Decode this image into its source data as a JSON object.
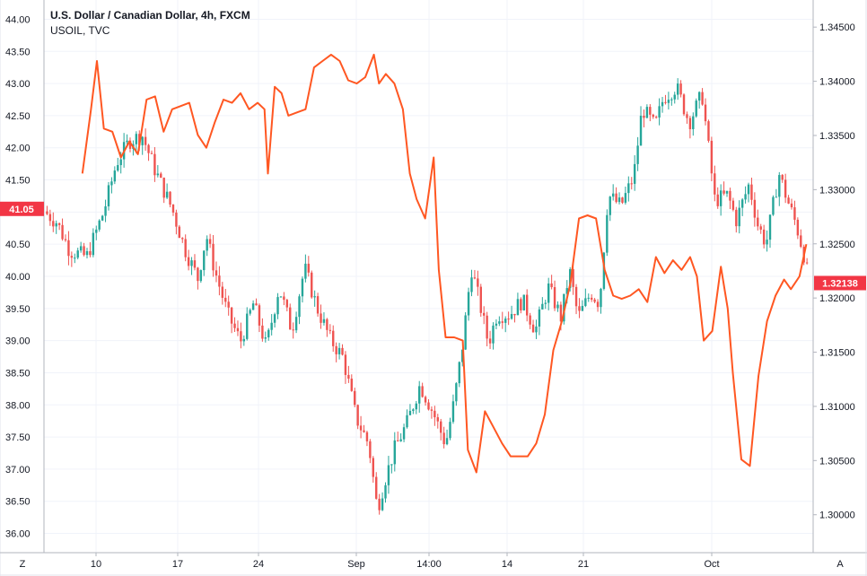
{
  "legend": {
    "main": "U.S. Dollar / Canadian Dollar, 4h, FXCM",
    "overlay": "USOIL, TVC"
  },
  "colors": {
    "up": "#26a69a",
    "down": "#ef5350",
    "overlay": "#ff5722",
    "badge": "#f23645",
    "grid": "#f0f3fa",
    "axis": "#b2b5be"
  },
  "controls": {
    "zoom_label": "Z",
    "auto_label": "A"
  },
  "price_badges": {
    "left": "41.05",
    "right": "1.32138"
  },
  "chart_data": {
    "type": "candlestick",
    "title": "U.S. Dollar / Canadian Dollar, 4h, FXCM",
    "xlabel": "",
    "ylabel": "",
    "x_tick_labels": [
      "10",
      "17",
      "24",
      "Sep",
      "14:00",
      "14",
      "21",
      "Oct"
    ],
    "left_axis": {
      "series": "USOIL, TVC",
      "ylim": [
        35.7,
        44.3
      ],
      "ticks": [
        "44.00",
        "43.50",
        "43.00",
        "42.50",
        "42.00",
        "41.50",
        "41.00",
        "40.50",
        "40.00",
        "39.50",
        "39.00",
        "38.50",
        "38.00",
        "37.50",
        "37.00",
        "36.50",
        "36.00"
      ],
      "last_value": 41.05
    },
    "right_axis": {
      "series": "U.S. Dollar / Canadian Dollar, 4h, FXCM",
      "ylim": [
        1.2965,
        1.3475
      ],
      "ticks": [
        "1.34500",
        "1.34000",
        "1.33500",
        "1.33000",
        "1.32500",
        "1.32000",
        "1.31500",
        "1.31000",
        "1.30500",
        "1.30000"
      ],
      "last_value": 1.32138
    },
    "grid": true,
    "series": [
      {
        "name": "U.S. Dollar / Canadian Dollar, 4h, FXCM",
        "kind": "candlestick-close-path",
        "axis": "right",
        "points": [
          [
            0,
            1.328
          ],
          [
            15,
            1.327
          ],
          [
            30,
            1.3244
          ],
          [
            50,
            1.3238
          ],
          [
            70,
            1.328
          ],
          [
            85,
            1.3325
          ],
          [
            100,
            1.3345
          ],
          [
            115,
            1.335
          ],
          [
            130,
            1.3318
          ],
          [
            150,
            1.3282
          ],
          [
            165,
            1.3245
          ],
          [
            180,
            1.3218
          ],
          [
            190,
            1.3258
          ],
          [
            200,
            1.3225
          ],
          [
            215,
            1.3185
          ],
          [
            230,
            1.316
          ],
          [
            245,
            1.3195
          ],
          [
            260,
            1.3155
          ],
          [
            275,
            1.321
          ],
          [
            290,
            1.317
          ],
          [
            305,
            1.3228
          ],
          [
            320,
            1.319
          ],
          [
            335,
            1.3162
          ],
          [
            350,
            1.3145
          ],
          [
            365,
            1.309
          ],
          [
            380,
            1.3065
          ],
          [
            390,
            1.3005
          ],
          [
            400,
            1.3035
          ],
          [
            410,
            1.306
          ],
          [
            425,
            1.3085
          ],
          [
            440,
            1.312
          ],
          [
            455,
            1.3095
          ],
          [
            470,
            1.3065
          ],
          [
            480,
            1.3105
          ],
          [
            490,
            1.3158
          ],
          [
            500,
            1.3228
          ],
          [
            510,
            1.3195
          ],
          [
            520,
            1.3158
          ],
          [
            530,
            1.3185
          ],
          [
            545,
            1.3185
          ],
          [
            560,
            1.3198
          ],
          [
            575,
            1.317
          ],
          [
            590,
            1.321
          ],
          [
            605,
            1.3182
          ],
          [
            615,
            1.3225
          ],
          [
            625,
            1.3182
          ],
          [
            640,
            1.3205
          ],
          [
            650,
            1.3195
          ],
          [
            660,
            1.3295
          ],
          [
            675,
            1.3285
          ],
          [
            690,
            1.3312
          ],
          [
            700,
            1.3375
          ],
          [
            715,
            1.3358
          ],
          [
            725,
            1.3385
          ],
          [
            740,
            1.3395
          ],
          [
            755,
            1.3362
          ],
          [
            770,
            1.3388
          ],
          [
            785,
            1.329
          ],
          [
            800,
            1.3295
          ],
          [
            810,
            1.3272
          ],
          [
            825,
            1.3305
          ],
          [
            835,
            1.3268
          ],
          [
            845,
            1.325
          ],
          [
            860,
            1.3315
          ],
          [
            870,
            1.329
          ],
          [
            880,
            1.3268
          ],
          [
            890,
            1.3238
          ],
          [
            895,
            1.3215
          ]
        ]
      },
      {
        "name": "USOIL, TVC",
        "kind": "line",
        "axis": "left",
        "points": [
          [
            45,
            41.6
          ],
          [
            55,
            42.6
          ],
          [
            62,
            43.35
          ],
          [
            70,
            42.3
          ],
          [
            80,
            42.25
          ],
          [
            90,
            41.85
          ],
          [
            100,
            42.1
          ],
          [
            110,
            41.9
          ],
          [
            120,
            42.75
          ],
          [
            130,
            42.8
          ],
          [
            140,
            42.25
          ],
          [
            150,
            42.6
          ],
          [
            160,
            42.65
          ],
          [
            170,
            42.7
          ],
          [
            180,
            42.2
          ],
          [
            190,
            42.0
          ],
          [
            200,
            42.4
          ],
          [
            210,
            42.75
          ],
          [
            220,
            42.7
          ],
          [
            230,
            42.85
          ],
          [
            240,
            42.6
          ],
          [
            250,
            42.7
          ],
          [
            258,
            42.6
          ],
          [
            262,
            41.6
          ],
          [
            270,
            42.95
          ],
          [
            278,
            42.85
          ],
          [
            286,
            42.5
          ],
          [
            296,
            42.55
          ],
          [
            306,
            42.6
          ],
          [
            316,
            43.25
          ],
          [
            326,
            43.35
          ],
          [
            336,
            43.45
          ],
          [
            346,
            43.35
          ],
          [
            356,
            43.05
          ],
          [
            366,
            43.0
          ],
          [
            376,
            43.1
          ],
          [
            386,
            43.45
          ],
          [
            392,
            43.0
          ],
          [
            400,
            43.15
          ],
          [
            410,
            43.0
          ],
          [
            420,
            42.6
          ],
          [
            428,
            41.6
          ],
          [
            436,
            41.2
          ],
          [
            446,
            40.9
          ],
          [
            456,
            41.85
          ],
          [
            462,
            40.1
          ],
          [
            470,
            39.05
          ],
          [
            480,
            39.05
          ],
          [
            490,
            39.0
          ],
          [
            496,
            37.3
          ],
          [
            506,
            36.95
          ],
          [
            516,
            37.9
          ],
          [
            526,
            37.65
          ],
          [
            536,
            37.4
          ],
          [
            546,
            37.2
          ],
          [
            556,
            37.2
          ],
          [
            566,
            37.2
          ],
          [
            576,
            37.4
          ],
          [
            586,
            37.85
          ],
          [
            596,
            38.85
          ],
          [
            606,
            39.3
          ],
          [
            616,
            39.9
          ],
          [
            626,
            40.9
          ],
          [
            636,
            40.95
          ],
          [
            646,
            40.9
          ],
          [
            656,
            40.1
          ],
          [
            666,
            39.7
          ],
          [
            676,
            39.65
          ],
          [
            686,
            39.7
          ],
          [
            696,
            39.8
          ],
          [
            706,
            39.6
          ],
          [
            716,
            40.3
          ],
          [
            726,
            40.05
          ],
          [
            736,
            40.25
          ],
          [
            746,
            40.1
          ],
          [
            756,
            40.3
          ],
          [
            764,
            40.0
          ],
          [
            772,
            39.0
          ],
          [
            782,
            39.15
          ],
          [
            792,
            40.15
          ],
          [
            800,
            39.5
          ],
          [
            806,
            38.5
          ],
          [
            816,
            37.15
          ],
          [
            826,
            37.05
          ],
          [
            836,
            38.45
          ],
          [
            846,
            39.3
          ],
          [
            856,
            39.7
          ],
          [
            866,
            39.95
          ],
          [
            874,
            39.8
          ],
          [
            884,
            40.0
          ],
          [
            892,
            40.5
          ]
        ]
      }
    ]
  }
}
